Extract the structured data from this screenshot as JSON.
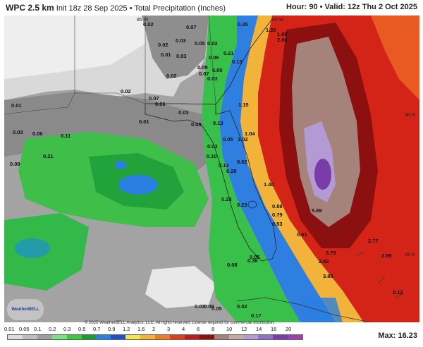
{
  "header": {
    "model": "WPC 2.5 km",
    "init": "Init 18z 28 Sep 2025",
    "field": "Total Precipitation (Inches)",
    "hour": "Hour: 90",
    "valid": "Valid: 12z Thu 2 Oct 2025"
  },
  "coords": {
    "lon_85w": "85 W",
    "lon_80w": "80 W",
    "lat_30n": "30 N",
    "lat_25n": "25 N"
  },
  "value_labels": [
    "0.02",
    "0.07",
    "0.03",
    "0.05",
    "0.02",
    "0.01",
    "0.02",
    "0.35",
    "1.26",
    "1.88",
    "2.66",
    "0.03",
    "0.06",
    "0.21",
    "0.09",
    "0.07",
    "0.02",
    "0.03",
    "0.05",
    "0.13",
    "0.02",
    "0.07",
    "0.06",
    "0.03",
    "0.08",
    "0.13",
    "1.15",
    "0.01",
    "0.03",
    "0.06",
    "0.11",
    "0.01",
    "0.03",
    "0.05",
    "1.04",
    "1.02",
    "0.21",
    "0.08",
    "0.10",
    "0.28",
    "0.62",
    "0.13",
    "1.40",
    "0.23",
    "0.23",
    "0.88",
    "0.79",
    "5.69",
    "0.53",
    "0.61",
    "0.05",
    "0.36",
    "0.08",
    "2.77",
    "3.79",
    "2.82",
    "2.59",
    "3.88",
    "0.12",
    "0.17",
    "0.02",
    "0.09",
    "0.05",
    "0.03"
  ],
  "legend": {
    "ticks": [
      "0.01",
      "0.05",
      "0.1",
      "0.2",
      "0.3",
      "0.5",
      "0.7",
      "0.9",
      "1.2",
      "1.6",
      "2",
      "3",
      "4",
      "6",
      "8",
      "10",
      "12",
      "14",
      "16",
      "20"
    ],
    "colors": [
      "#dcdcdc",
      "#bdbdbd",
      "#9e9e9e",
      "#7ee07e",
      "#3fc83f",
      "#1a9a30",
      "#2a7fe0",
      "#1e50c8",
      "#f3e64a",
      "#f2b33a",
      "#f07c28",
      "#e03c1e",
      "#c01a1a",
      "#8c1010",
      "#a5827a",
      "#c8aaa5",
      "#b49ad2",
      "#9070c8",
      "#7a3ca8",
      "#a040b0"
    ],
    "credit": "© 2025 WeatherBELL Analytics, LLC. All rights reserved. License required for commercial distribution.",
    "max": "Max: 16.23"
  },
  "logo": "WeatherBELL"
}
